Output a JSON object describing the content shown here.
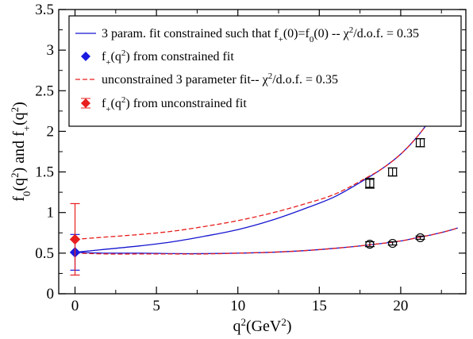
{
  "chart_data": {
    "type": "line",
    "xlabel": "q²(GeV²)",
    "ylabel": "f₀(q²) and f₊(q²)",
    "xlim": [
      -1,
      24
    ],
    "ylim": [
      0,
      3.5
    ],
    "x_ticks": [
      "0",
      "5",
      "10",
      "15",
      "20"
    ],
    "x_tick_values": [
      0,
      5,
      10,
      15,
      20
    ],
    "y_ticks": [
      "0",
      "0.5",
      "1",
      "1.5",
      "2",
      "2.5",
      "3",
      "3.5"
    ],
    "y_tick_values": [
      0,
      0.5,
      1,
      1.5,
      2,
      2.5,
      3,
      3.5
    ],
    "legend_position": "top",
    "legend": [
      {
        "text": "3 param. fit constrained such that f₊(0)=f₀(0) -- χ²/d.o.f. = 0.35",
        "kind": "line",
        "color": "#1515d0"
      },
      {
        "text": "f₊(q²) from constrained fit",
        "kind": "diamond",
        "color": "#1a1ae0"
      },
      {
        "text": "unconstrained 3 parameter fit-- χ²/d.o.f. = 0.35",
        "kind": "dashed",
        "color": "#e81e1e"
      },
      {
        "text": "f₊(q²) from unconstrained fit",
        "kind": "diamond",
        "color": "#e81e1e"
      }
    ],
    "series": [
      {
        "kind": "line",
        "color": "#1515d0",
        "x": [
          0,
          2,
          4,
          6,
          8,
          10,
          12,
          14,
          16,
          18,
          19,
          20,
          21,
          22,
          22.5,
          23,
          23.3
        ],
        "y": [
          0.51,
          0.55,
          0.59,
          0.64,
          0.71,
          0.79,
          0.9,
          1.04,
          1.2,
          1.43,
          1.56,
          1.72,
          1.93,
          2.2,
          2.37,
          2.56,
          2.68
        ]
      },
      {
        "kind": "dashed",
        "color": "#e81e1e",
        "x": [
          0,
          2,
          4,
          6,
          8,
          10,
          12,
          14,
          16,
          18,
          19,
          20,
          21,
          22,
          22.5,
          23,
          23.5
        ],
        "y": [
          0.67,
          0.7,
          0.73,
          0.77,
          0.83,
          0.9,
          0.99,
          1.1,
          1.23,
          1.44,
          1.56,
          1.72,
          1.93,
          2.2,
          2.38,
          2.58,
          2.79
        ]
      },
      {
        "kind": "line",
        "color": "#1515d0",
        "x": [
          0,
          2,
          4,
          6,
          8,
          10,
          12,
          14,
          16,
          18,
          20,
          21,
          22,
          23,
          23.5
        ],
        "y": [
          0.51,
          0.5,
          0.5,
          0.495,
          0.495,
          0.5,
          0.51,
          0.53,
          0.56,
          0.6,
          0.65,
          0.69,
          0.73,
          0.78,
          0.81
        ]
      },
      {
        "kind": "dashed",
        "color": "#e81e1e",
        "x": [
          0,
          2,
          4,
          6,
          8,
          10,
          12,
          14,
          16,
          18,
          20,
          21,
          22,
          23,
          23.5
        ],
        "y": [
          0.5,
          0.49,
          0.49,
          0.49,
          0.49,
          0.5,
          0.51,
          0.53,
          0.56,
          0.6,
          0.65,
          0.69,
          0.73,
          0.78,
          0.81
        ]
      },
      {
        "kind": "squares",
        "color": "#000000",
        "x": [
          18.1,
          19.5,
          21.2
        ],
        "y": [
          1.36,
          1.5,
          1.86
        ],
        "err": [
          0.06,
          0.05,
          0.05
        ]
      },
      {
        "kind": "circles",
        "color": "#000000",
        "x": [
          18.1,
          19.5,
          21.2
        ],
        "y": [
          0.61,
          0.62,
          0.69
        ],
        "err": [
          0.03,
          0.02,
          0.02
        ]
      },
      {
        "kind": "diamond",
        "color": "#1a1ae0",
        "name_ref": 1,
        "x": [
          0
        ],
        "y": [
          0.51
        ],
        "err": [
          0.22
        ]
      },
      {
        "kind": "diamond",
        "color": "#e81e1e",
        "name_ref": 3,
        "x": [
          0
        ],
        "y": [
          0.67
        ],
        "err": [
          0.44
        ]
      }
    ]
  }
}
